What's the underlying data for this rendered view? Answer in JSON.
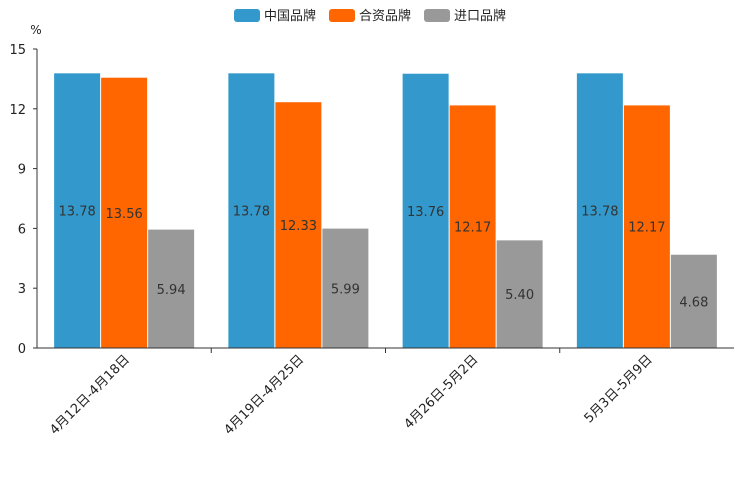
{
  "chart_data": {
    "type": "bar",
    "title": "",
    "xlabel": "",
    "ylabel": "%",
    "ylim": [
      0,
      15
    ],
    "yticks": [
      0,
      3,
      6,
      9,
      12,
      15
    ],
    "categories": [
      "4月12日-4月18日",
      "4月19日-4月25日",
      "4月26日-5月2日",
      "5月3日-5月9日"
    ],
    "series": [
      {
        "name": "中国品牌",
        "color": "#3399cc",
        "values": [
          13.78,
          13.78,
          13.76,
          13.78
        ],
        "labels": [
          "13.78",
          "13.78",
          "13.76",
          "13.78"
        ]
      },
      {
        "name": "合资品牌",
        "color": "#ff6600",
        "values": [
          13.56,
          12.33,
          12.17,
          12.17
        ],
        "labels": [
          "13.56",
          "12.33",
          "12.17",
          "12.17"
        ]
      },
      {
        "name": "进口品牌",
        "color": "#999999",
        "values": [
          5.94,
          5.99,
          5.4,
          4.68
        ],
        "labels": [
          "5.94",
          "5.99",
          "5.40",
          "4.68"
        ]
      }
    ],
    "legend_position": "top-center",
    "grid": false
  }
}
